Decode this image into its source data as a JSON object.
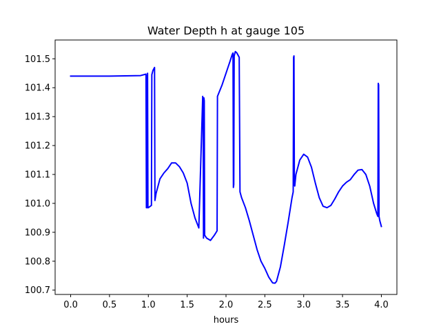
{
  "chart_data": {
    "type": "line",
    "title": "Water Depth h at gauge 105",
    "xlabel": "hours",
    "ylabel": "",
    "xlim": [
      -0.2,
      4.2
    ],
    "ylim": [
      100.685,
      101.565
    ],
    "xticks": [
      0.0,
      0.5,
      1.0,
      1.5,
      2.0,
      2.5,
      3.0,
      3.5,
      4.0
    ],
    "xtick_labels": [
      "0.0",
      "0.5",
      "1.0",
      "1.5",
      "2.0",
      "2.5",
      "3.0",
      "3.5",
      "4.0"
    ],
    "yticks": [
      100.7,
      100.8,
      100.9,
      101.0,
      101.1,
      101.2,
      101.3,
      101.4,
      101.5
    ],
    "ytick_labels": [
      "100.7",
      "100.8",
      "100.9",
      "101.0",
      "101.1",
      "101.2",
      "101.3",
      "101.4",
      "101.5"
    ],
    "grid": false,
    "legend": "none",
    "series": [
      {
        "color": "#0000ff",
        "x": [
          0.0,
          0.5,
          0.9,
          0.97,
          0.975,
          0.98,
          0.985,
          0.99,
          0.995,
          1.0,
          1.04,
          1.045,
          1.06,
          1.08,
          1.085,
          1.1,
          1.15,
          1.2,
          1.25,
          1.3,
          1.35,
          1.4,
          1.45,
          1.5,
          1.55,
          1.6,
          1.65,
          1.7,
          1.705,
          1.71,
          1.715,
          1.72,
          1.725,
          1.75,
          1.8,
          1.85,
          1.885,
          1.89,
          1.95,
          2.0,
          2.05,
          2.08,
          2.09,
          2.095,
          2.1,
          2.105,
          2.12,
          2.14,
          2.17,
          2.18,
          2.185,
          2.2,
          2.25,
          2.3,
          2.35,
          2.4,
          2.45,
          2.5,
          2.55,
          2.6,
          2.63,
          2.65,
          2.7,
          2.75,
          2.8,
          2.85,
          2.865,
          2.87,
          2.875,
          2.88,
          2.885,
          2.9,
          2.95,
          3.0,
          3.05,
          3.1,
          3.15,
          3.2,
          3.25,
          3.3,
          3.35,
          3.4,
          3.45,
          3.5,
          3.55,
          3.6,
          3.65,
          3.7,
          3.75,
          3.8,
          3.85,
          3.9,
          3.94,
          3.955,
          3.96,
          3.965,
          3.97,
          3.98,
          4.0
        ],
        "y": [
          101.44,
          101.44,
          101.442,
          101.447,
          100.985,
          101.44,
          100.985,
          101.45,
          100.985,
          100.985,
          100.993,
          101.445,
          101.46,
          101.47,
          101.01,
          101.035,
          101.085,
          101.105,
          101.12,
          101.14,
          101.14,
          101.127,
          101.105,
          101.07,
          101.0,
          100.95,
          100.915,
          101.37,
          101.35,
          100.88,
          101.365,
          101.355,
          100.89,
          100.88,
          100.872,
          100.89,
          100.905,
          101.37,
          101.41,
          101.45,
          101.49,
          101.515,
          101.52,
          101.055,
          101.065,
          101.51,
          101.525,
          101.52,
          101.505,
          101.04,
          101.035,
          101.02,
          100.985,
          100.94,
          100.89,
          100.84,
          100.8,
          100.775,
          100.745,
          100.725,
          100.724,
          100.73,
          100.78,
          100.855,
          100.935,
          101.02,
          101.04,
          101.505,
          101.51,
          101.065,
          101.06,
          101.1,
          101.15,
          101.17,
          101.16,
          101.125,
          101.07,
          101.02,
          100.99,
          100.985,
          100.993,
          101.015,
          101.04,
          101.06,
          101.073,
          101.082,
          101.1,
          101.115,
          101.117,
          101.1,
          101.06,
          101.0,
          100.965,
          100.955,
          101.415,
          101.41,
          100.955,
          100.94,
          100.92
        ]
      }
    ]
  }
}
